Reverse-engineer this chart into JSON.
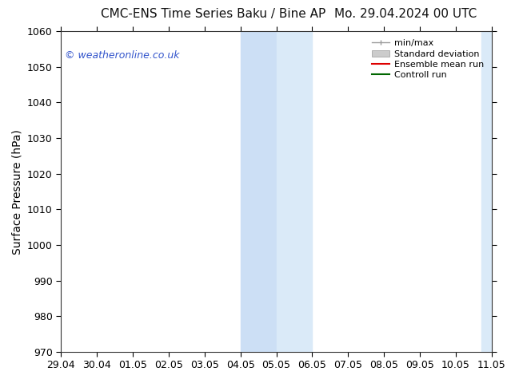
{
  "title_left": "CMC-ENS Time Series Baku / Bine AP",
  "title_right": "Mo. 29.04.2024 00 UTC",
  "ylabel": "Surface Pressure (hPa)",
  "ylim": [
    970,
    1060
  ],
  "yticks": [
    970,
    980,
    990,
    1000,
    1010,
    1020,
    1030,
    1040,
    1050,
    1060
  ],
  "xlim_start": 0,
  "xlim_end": 12,
  "xtick_labels": [
    "29.04",
    "30.04",
    "01.05",
    "02.05",
    "03.05",
    "04.05",
    "05.05",
    "06.05",
    "07.05",
    "08.05",
    "09.05",
    "10.05",
    "11.05"
  ],
  "xtick_positions": [
    0,
    1,
    2,
    3,
    4,
    5,
    6,
    7,
    8,
    9,
    10,
    11,
    12
  ],
  "shade1_xmin": 5,
  "shade1_xmax": 6,
  "shade1_color": "#ccdff5",
  "shade2_xmin": 6,
  "shade2_xmax": 7,
  "shade2_color": "#daeaf8",
  "shade3_xmin": 11.7,
  "shade3_xmax": 12.0,
  "shade3_color": "#daeaf8",
  "watermark_text": "© weatheronline.co.uk",
  "watermark_color": "#3355cc",
  "watermark_fontsize": 9,
  "legend_labels": [
    "min/max",
    "Standard deviation",
    "Ensemble mean run",
    "Controll run"
  ],
  "legend_line_color": "#999999",
  "legend_fill_color": "#cccccc",
  "legend_red": "#dd0000",
  "legend_green": "#006600",
  "background_color": "#ffffff",
  "title_fontsize": 11,
  "axis_label_fontsize": 10,
  "tick_fontsize": 9,
  "legend_fontsize": 8
}
